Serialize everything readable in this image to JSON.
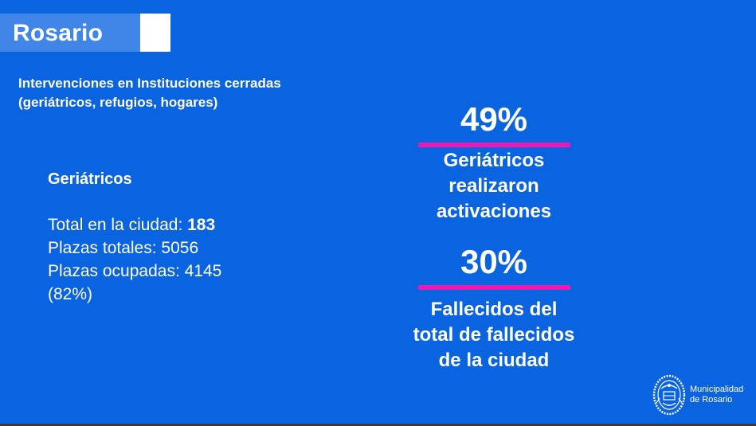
{
  "header": {
    "title": "Rosario"
  },
  "subtitle": {
    "line1": "Intervenciones en Instituciones cerradas",
    "line2": "(geriátricos, refugios, hogares)"
  },
  "left_panel": {
    "heading": "Geriátricos",
    "total_label": "Total en la ciudad: ",
    "total_value": "183",
    "plazas_totales": "Plazas totales: 5056",
    "plazas_ocupadas": "Plazas ocupadas: 4145",
    "plazas_ocupadas_pct": "(82%)"
  },
  "stat_1": {
    "value": "49%",
    "line1": "Geriátricos",
    "line2": "realizaron",
    "line3": "activaciones"
  },
  "stat_2": {
    "value": "30%",
    "line1": "Fallecidos del",
    "line2": "total de fallecidos",
    "line3": "de la ciudad"
  },
  "logo": {
    "line1": "Municipalidad",
    "line2": "de Rosario",
    "icon": "coat-of-arms-icon"
  },
  "colors": {
    "background": "#0a63df",
    "title_bar": "#3f86e8",
    "accent_line": "#ea19b3",
    "text": "#ffffff"
  }
}
